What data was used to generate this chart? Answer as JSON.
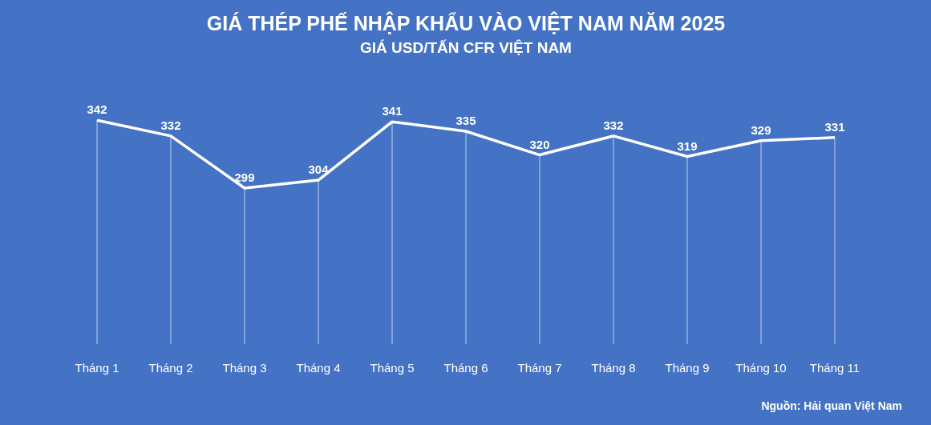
{
  "chart_data": {
    "type": "line",
    "title": "GIÁ THÉP PHẾ NHẬP KHẨU VÀO VIỆT NAM NĂM 2025",
    "subtitle": "GIÁ USD/TẤN CFR VIỆT NAM",
    "categories": [
      "Tháng 1",
      "Tháng 2",
      "Tháng 3",
      "Tháng 4",
      "Tháng 5",
      "Tháng 6",
      "Tháng 7",
      "Tháng 8",
      "Tháng 9",
      "Tháng 10",
      "Tháng 11"
    ],
    "series": [
      {
        "color": "#ffffff",
        "values": [
          342,
          332,
          299,
          304,
          341,
          335,
          320,
          332,
          319,
          329,
          331
        ]
      }
    ],
    "data_labels": true,
    "grid": "x",
    "marker": "none",
    "line_style": "solid",
    "annotations": [
      "Nguồn: Hải quan Việt Nam"
    ]
  }
}
